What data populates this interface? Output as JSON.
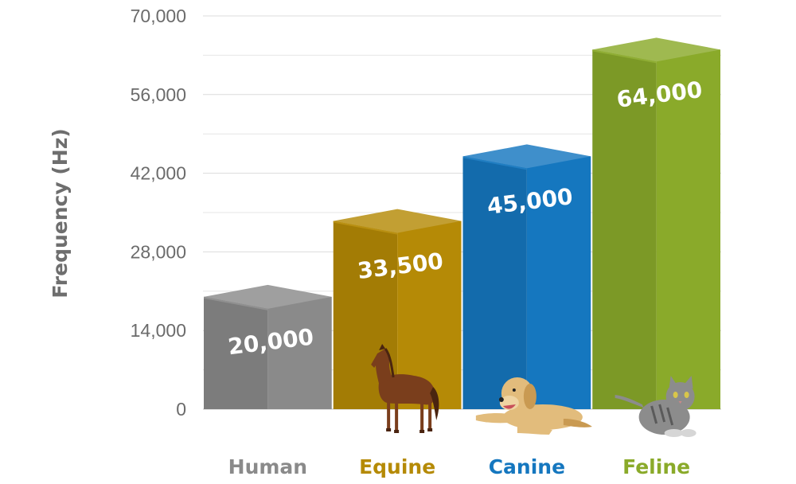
{
  "chart_data": {
    "type": "bar",
    "title": "",
    "xlabel": "",
    "ylabel": "Frequency (Hz)",
    "ylim": [
      0,
      70000
    ],
    "yticks": [
      "0",
      "14,000",
      "28,000",
      "42,000",
      "56,000",
      "70,000"
    ],
    "ytick_values": [
      0,
      14000,
      28000,
      42000,
      56000,
      70000
    ],
    "grid": true,
    "categories": [
      "Human",
      "Equine",
      "Canine",
      "Feline"
    ],
    "values": [
      20000,
      33500,
      45000,
      64000
    ],
    "value_labels": [
      "20,000",
      "33,500",
      "45,000",
      "64,000"
    ],
    "colors": [
      "#8a8a8a",
      "#b58a06",
      "#1577bf",
      "#8aaa2a"
    ],
    "images": [
      "",
      "horse-icon",
      "dog-icon",
      "cat-icon"
    ]
  }
}
